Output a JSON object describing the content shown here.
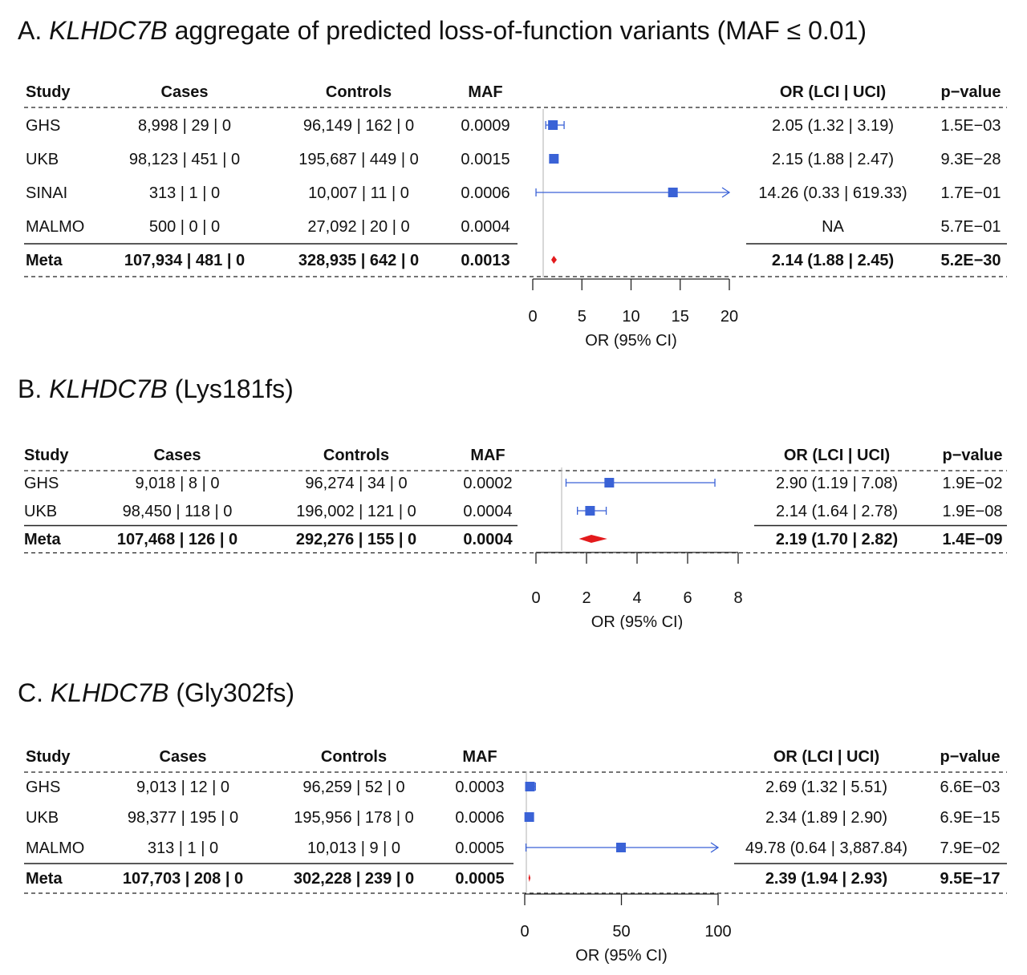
{
  "columns": {
    "study": "Study",
    "cases": "Cases",
    "controls": "Controls",
    "maf": "MAF",
    "or": "OR (LCI | UCI)",
    "p": "p−value"
  },
  "axis_label": "OR (95% CI)",
  "colors": {
    "point": "#3a62d6",
    "meta": "#e31a1c",
    "refline": "#bdbdbd"
  },
  "panels": [
    {
      "letter": "A.",
      "gene": "KLHDC7B",
      "subtitle": "aggregate of predicted loss-of-function variants (MAF ≤ 0.01)",
      "rows": [
        {
          "study": "GHS",
          "cases": "8,998 | 29 | 0",
          "controls": "96,149 | 162 | 0",
          "maf": "0.0009",
          "or_text": "2.05 (1.32 | 3.19)",
          "p": "1.5E−03"
        },
        {
          "study": "UKB",
          "cases": "98,123 | 451 | 0",
          "controls": "195,687 | 449 | 0",
          "maf": "0.0015",
          "or_text": "2.15 (1.88 | 2.47)",
          "p": "9.3E−28"
        },
        {
          "study": "SINAI",
          "cases": "313 | 1 | 0",
          "controls": "10,007 | 11 | 0",
          "maf": "0.0006",
          "or_text": "14.26 (0.33 | 619.33)",
          "p": "1.7E−01"
        },
        {
          "study": "MALMO",
          "cases": "500 | 0 | 0",
          "controls": "27,092 | 20 | 0",
          "maf": "0.0004",
          "or_text": "NA",
          "p": "5.7E−01"
        }
      ],
      "meta": {
        "study": "Meta",
        "cases": "107,934 | 481 | 0",
        "controls": "328,935 | 642 | 0",
        "maf": "0.0013",
        "or_text": "2.14 (1.88 | 2.45)",
        "p": "5.2E−30"
      },
      "ticks": [
        "0",
        "5",
        "10",
        "15",
        "20"
      ]
    },
    {
      "letter": "B.",
      "gene": "KLHDC7B",
      "subtitle": "(Lys181fs)",
      "rows": [
        {
          "study": "GHS",
          "cases": "9,018 | 8 | 0",
          "controls": "96,274 | 34 | 0",
          "maf": "0.0002",
          "or_text": "2.90 (1.19 | 7.08)",
          "p": "1.9E−02"
        },
        {
          "study": "UKB",
          "cases": "98,450 | 118 | 0",
          "controls": "196,002 | 121 | 0",
          "maf": "0.0004",
          "or_text": "2.14 (1.64 | 2.78)",
          "p": "1.9E−08"
        }
      ],
      "meta": {
        "study": "Meta",
        "cases": "107,468 | 126 | 0",
        "controls": "292,276 | 155 | 0",
        "maf": "0.0004",
        "or_text": "2.19 (1.70 | 2.82)",
        "p": "1.4E−09"
      },
      "ticks": [
        "0",
        "2",
        "4",
        "6",
        "8"
      ]
    },
    {
      "letter": "C.",
      "gene": "KLHDC7B",
      "subtitle": "(Gly302fs)",
      "rows": [
        {
          "study": "GHS",
          "cases": "9,013 | 12 | 0",
          "controls": "96,259 | 52 | 0",
          "maf": "0.0003",
          "or_text": "2.69 (1.32 | 5.51)",
          "p": "6.6E−03"
        },
        {
          "study": "UKB",
          "cases": "98,377 | 195 | 0",
          "controls": "195,956 | 178 | 0",
          "maf": "0.0006",
          "or_text": "2.34 (1.89 | 2.90)",
          "p": "6.9E−15"
        },
        {
          "study": "MALMO",
          "cases": "313 | 1 | 0",
          "controls": "10,013 | 9 | 0",
          "maf": "0.0005",
          "or_text": "49.78 (0.64 | 3,887.84)",
          "p": "7.9E−02"
        }
      ],
      "meta": {
        "study": "Meta",
        "cases": "107,703 | 208 | 0",
        "controls": "302,228 | 239 | 0",
        "maf": "0.0005",
        "or_text": "2.39 (1.94 | 2.93)",
        "p": "9.5E−17"
      },
      "ticks": [
        "0",
        "50",
        "100"
      ]
    }
  ],
  "chart_data": [
    {
      "type": "forest",
      "reference_line": 1,
      "xlim": [
        0,
        20
      ],
      "studies": [
        {
          "name": "GHS",
          "or": 2.05,
          "lci": 1.32,
          "uci": 3.19
        },
        {
          "name": "UKB",
          "or": 2.15,
          "lci": 1.88,
          "uci": 2.47
        },
        {
          "name": "SINAI",
          "or": 14.26,
          "lci": 0.33,
          "uci": 619.33
        },
        {
          "name": "MALMO",
          "or": null,
          "lci": null,
          "uci": null
        }
      ],
      "meta": {
        "or": 2.14,
        "lci": 1.88,
        "uci": 2.45
      }
    },
    {
      "type": "forest",
      "reference_line": 1,
      "xlim": [
        0,
        8
      ],
      "studies": [
        {
          "name": "GHS",
          "or": 2.9,
          "lci": 1.19,
          "uci": 7.08
        },
        {
          "name": "UKB",
          "or": 2.14,
          "lci": 1.64,
          "uci": 2.78
        }
      ],
      "meta": {
        "or": 2.19,
        "lci": 1.7,
        "uci": 2.82
      }
    },
    {
      "type": "forest",
      "reference_line": 1,
      "xlim": [
        0,
        100
      ],
      "studies": [
        {
          "name": "GHS",
          "or": 2.69,
          "lci": 1.32,
          "uci": 5.51
        },
        {
          "name": "UKB",
          "or": 2.34,
          "lci": 1.89,
          "uci": 2.9
        },
        {
          "name": "MALMO",
          "or": 49.78,
          "lci": 0.64,
          "uci": 3887.84
        }
      ],
      "meta": {
        "or": 2.39,
        "lci": 1.94,
        "uci": 2.93
      }
    }
  ]
}
